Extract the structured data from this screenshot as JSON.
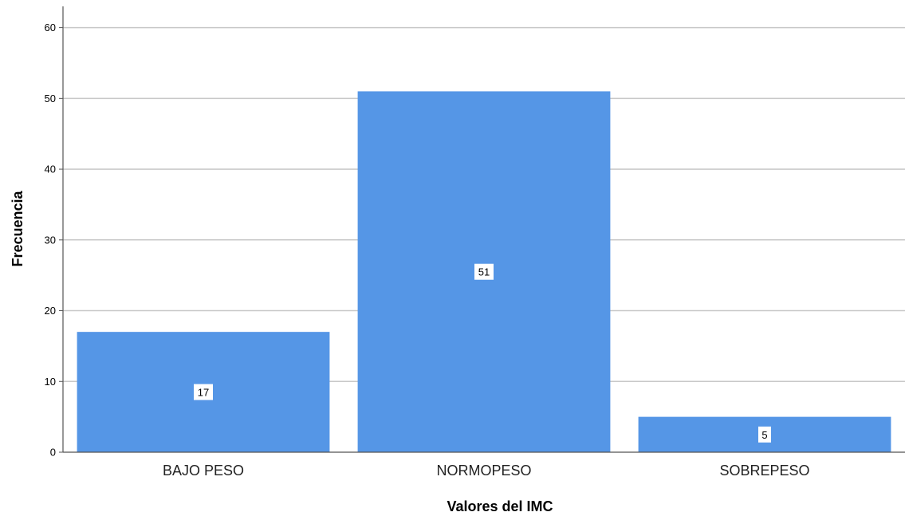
{
  "chart_data": {
    "type": "bar",
    "title": "",
    "xlabel": "Valores del IMC",
    "ylabel": "Frecuencia",
    "categories": [
      "BAJO PESO",
      "NORMOPESO",
      "SOBREPESO"
    ],
    "values": [
      17,
      51,
      5
    ],
    "data_labels": [
      "17",
      "51",
      "5"
    ],
    "ylim": [
      0,
      63
    ],
    "yticks": [
      0,
      10,
      20,
      30,
      40,
      50,
      60
    ],
    "grid": true,
    "legend": "none",
    "colors": {
      "bar": "#5596e6",
      "grid": "#c8c8c8",
      "axis": "#555555",
      "label_box": "#ffffff"
    }
  }
}
